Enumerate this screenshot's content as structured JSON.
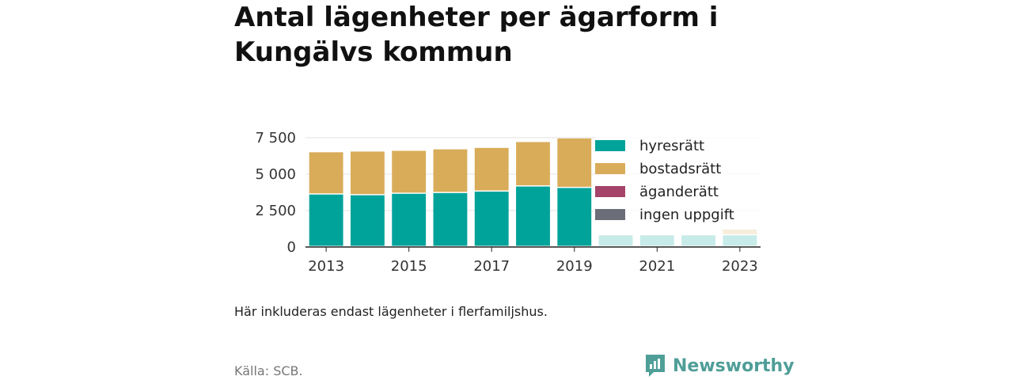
{
  "title": "Antal lägenheter per ägarform i Kungälvs kommun",
  "note": "Här inkluderas endast lägenheter i flerfamiljshus.",
  "source": "Källa: SCB.",
  "brand": {
    "name": "Newsworthy",
    "icon": "newsworthy-logo-icon",
    "color": "#4f9e98"
  },
  "chart_data": {
    "type": "bar",
    "stacked": true,
    "categories": [
      "2013",
      "2014",
      "2015",
      "2016",
      "2017",
      "2018",
      "2019",
      "2020",
      "2021",
      "2022",
      "2023"
    ],
    "x_tick_labels": [
      "2013",
      "2015",
      "2017",
      "2019",
      "2021",
      "2023"
    ],
    "y_tick_labels": [
      "0",
      "2 500",
      "5 000",
      "7 500"
    ],
    "y_ticks": [
      0,
      2500,
      5000,
      7500
    ],
    "ylim": [
      0,
      8800
    ],
    "grid": true,
    "legend_position": "right",
    "series": [
      {
        "name": "hyresrätt",
        "color": "#00a39a",
        "values": [
          3600,
          3550,
          3650,
          3700,
          3800,
          4150,
          4050,
          800,
          800,
          800,
          800
        ]
      },
      {
        "name": "bostadsrätt",
        "color": "#d9ac5a",
        "values": [
          2900,
          3000,
          2950,
          3000,
          3000,
          3050,
          3400,
          0,
          0,
          0,
          400
        ]
      },
      {
        "name": "äganderätt",
        "color": "#a5436a",
        "values": [
          0,
          0,
          0,
          0,
          0,
          0,
          0,
          0,
          0,
          0,
          0
        ]
      },
      {
        "name": "ingen uppgift",
        "color": "#6b6e78",
        "values": [
          0,
          0,
          0,
          0,
          0,
          0,
          0,
          0,
          0,
          0,
          0
        ]
      }
    ]
  }
}
